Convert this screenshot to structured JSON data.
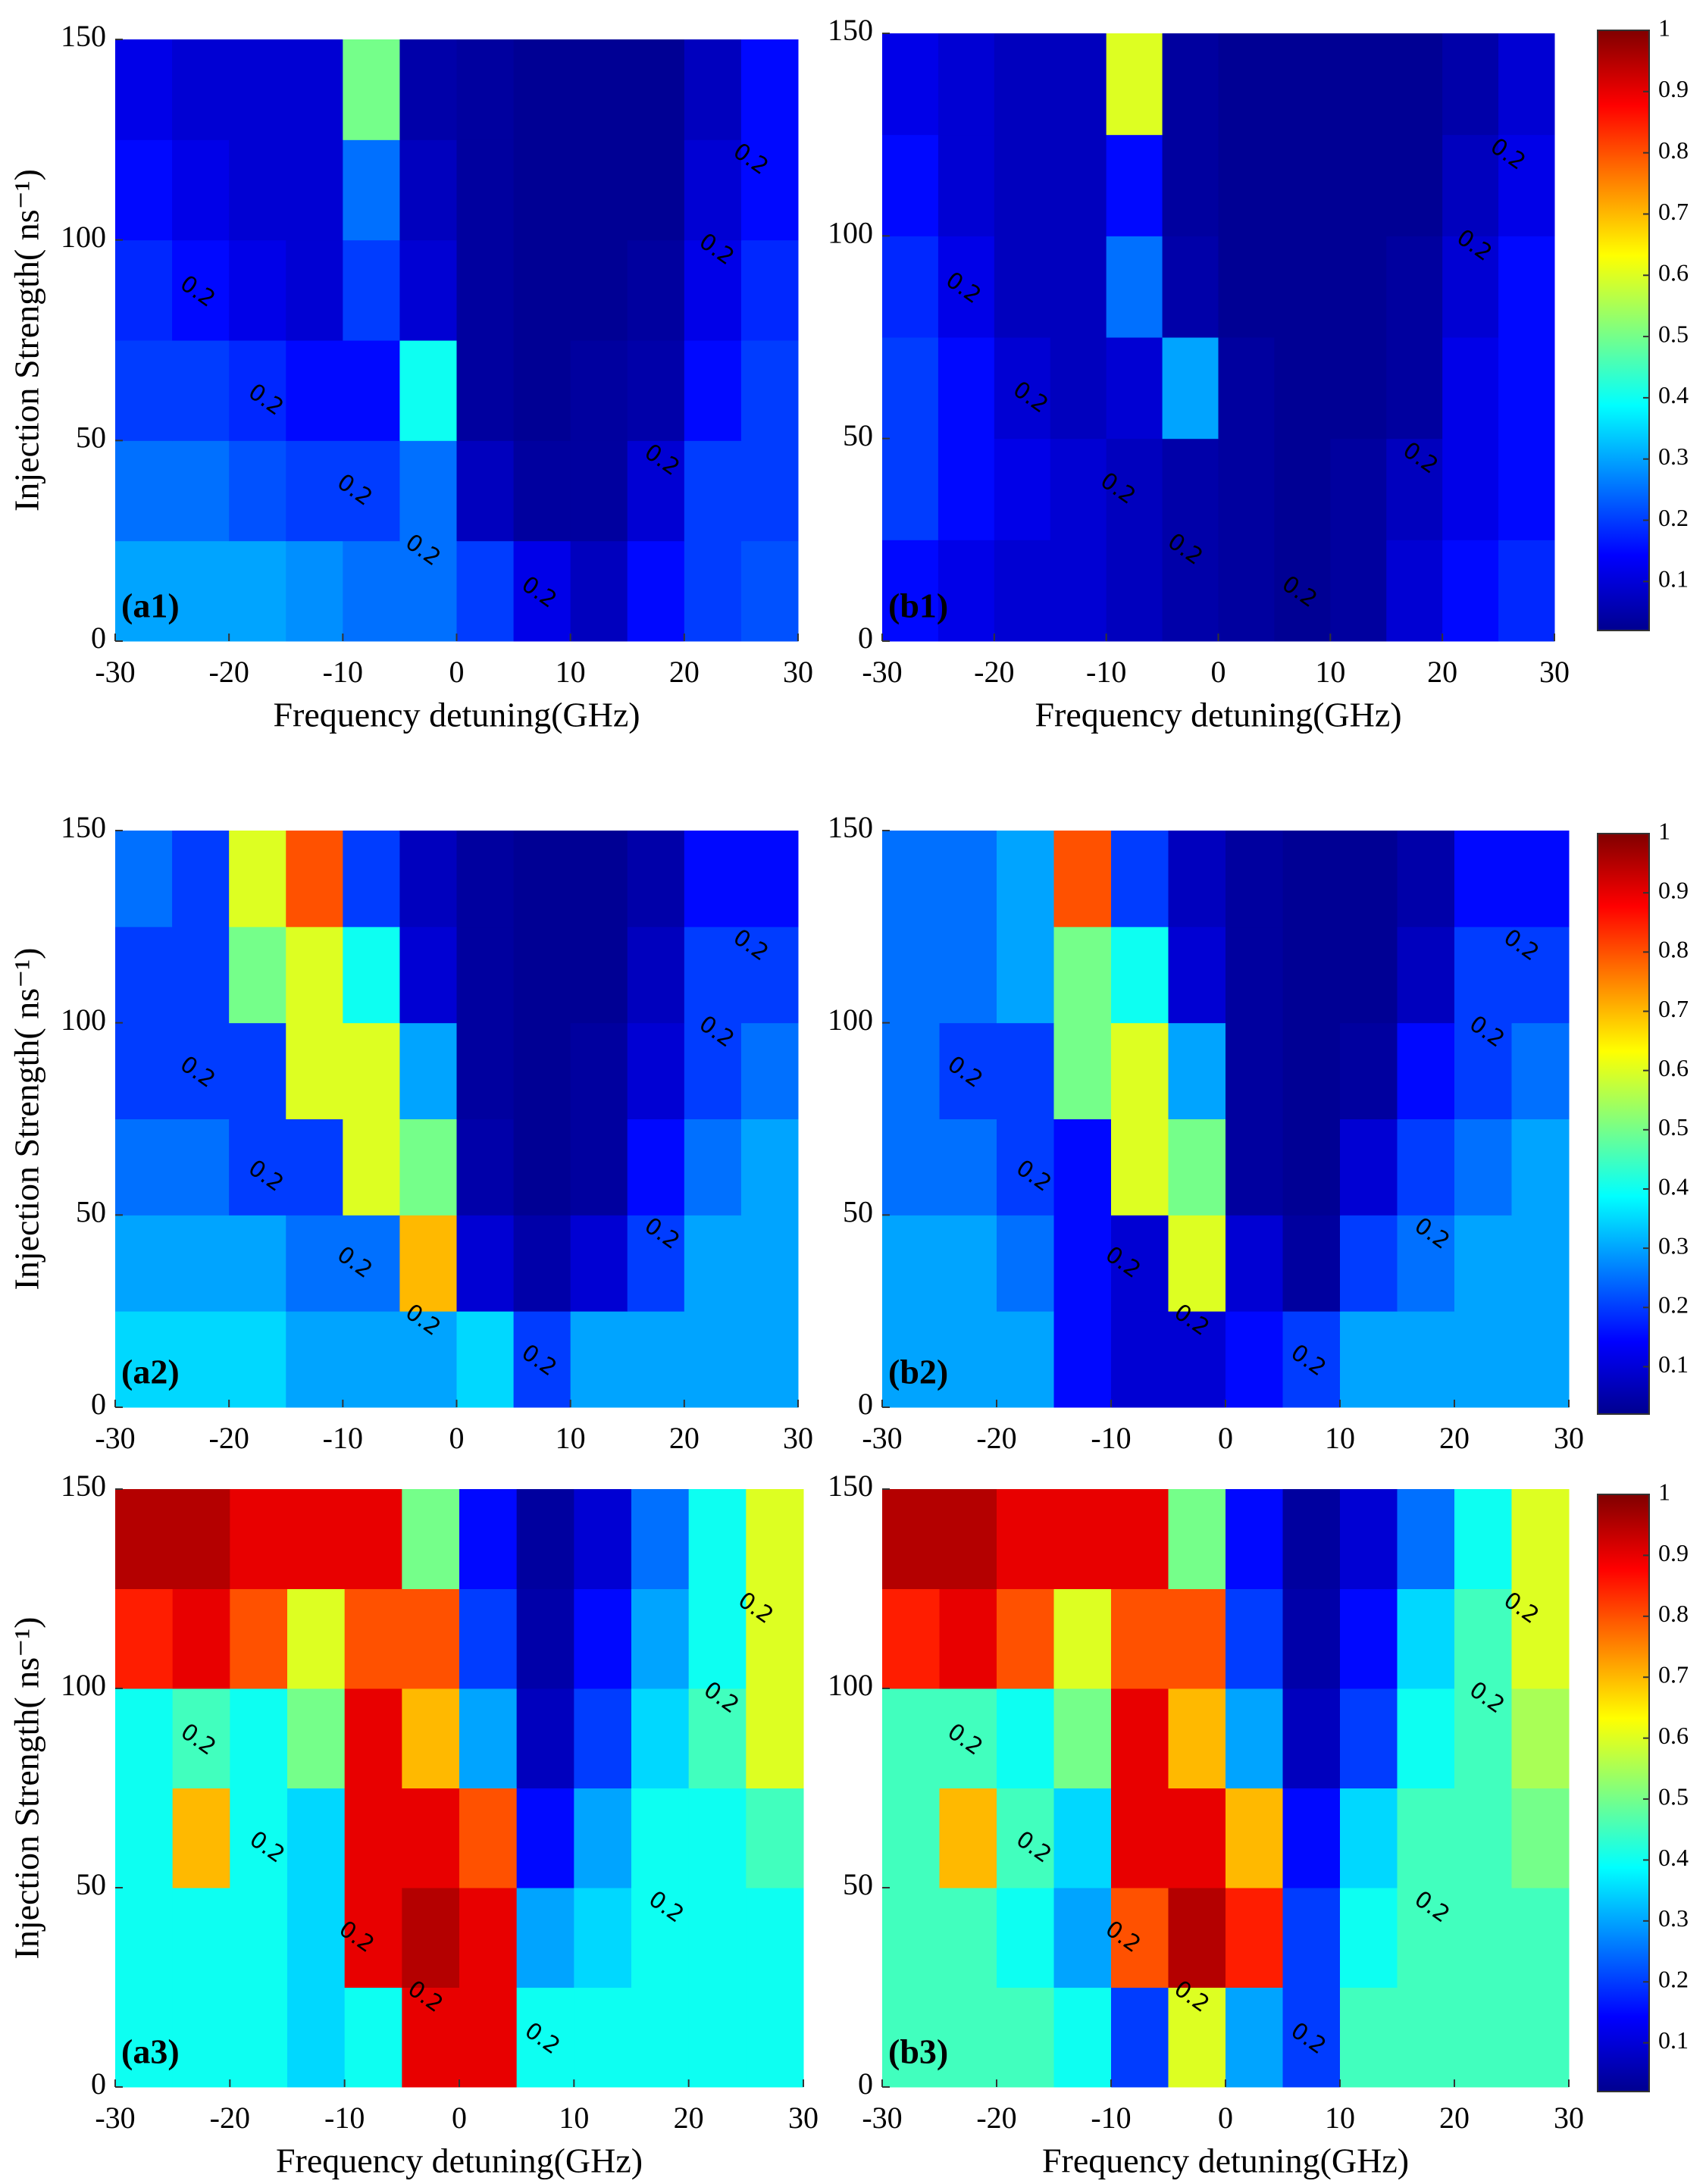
{
  "chart_data": [
    {
      "type": "heatmap",
      "panel_label": "(a1)",
      "xlabel": "Frequency detuning(GHz)",
      "ylabel": "Injection Strength( ns⁻¹)",
      "x": [
        -27.5,
        -22.5,
        -17.5,
        -12.5,
        -7.5,
        -2.5,
        2.5,
        7.5,
        12.5,
        17.5,
        22.5,
        27.5
      ],
      "y": [
        12.5,
        37.5,
        62.5,
        87.5,
        112.5,
        137.5
      ],
      "z": [
        [
          0.3,
          0.3,
          0.3,
          0.28,
          0.25,
          0.25,
          0.2,
          0.12,
          0.08,
          0.15,
          0.2,
          0.22
        ],
        [
          0.25,
          0.25,
          0.22,
          0.2,
          0.2,
          0.25,
          0.08,
          0.05,
          0.05,
          0.1,
          0.2,
          0.2
        ],
        [
          0.2,
          0.2,
          0.18,
          0.15,
          0.15,
          0.4,
          0.05,
          0.04,
          0.05,
          0.06,
          0.15,
          0.2
        ],
        [
          0.18,
          0.15,
          0.12,
          0.1,
          0.2,
          0.1,
          0.05,
          0.04,
          0.04,
          0.05,
          0.12,
          0.18
        ],
        [
          0.15,
          0.12,
          0.1,
          0.1,
          0.25,
          0.08,
          0.05,
          0.04,
          0.04,
          0.04,
          0.1,
          0.15
        ],
        [
          0.12,
          0.1,
          0.1,
          0.1,
          0.5,
          0.06,
          0.05,
          0.04,
          0.04,
          0.04,
          0.08,
          0.15
        ]
      ],
      "xlim": [
        -30,
        30
      ],
      "xticks": [
        -30,
        -20,
        -10,
        0,
        10,
        20,
        30
      ],
      "ylim": [
        0,
        150
      ],
      "yticks": [
        0,
        50,
        100,
        150
      ],
      "clim": [
        0.02,
        1
      ],
      "colormap": "jet",
      "contour_levels": [
        0.2
      ]
    },
    {
      "type": "heatmap",
      "panel_label": "(b1)",
      "xlabel": "Frequency detuning(GHz)",
      "x": [
        -27.5,
        -22.5,
        -17.5,
        -12.5,
        -7.5,
        -2.5,
        2.5,
        7.5,
        12.5,
        17.5,
        22.5,
        27.5
      ],
      "y": [
        12.5,
        37.5,
        62.5,
        87.5,
        112.5,
        137.5
      ],
      "z": [
        [
          0.15,
          0.12,
          0.1,
          0.1,
          0.08,
          0.06,
          0.05,
          0.04,
          0.05,
          0.1,
          0.15,
          0.18
        ],
        [
          0.2,
          0.15,
          0.12,
          0.1,
          0.08,
          0.06,
          0.05,
          0.04,
          0.05,
          0.08,
          0.12,
          0.15
        ],
        [
          0.2,
          0.15,
          0.1,
          0.08,
          0.1,
          0.3,
          0.05,
          0.04,
          0.04,
          0.05,
          0.12,
          0.15
        ],
        [
          0.18,
          0.12,
          0.08,
          0.08,
          0.25,
          0.06,
          0.04,
          0.04,
          0.04,
          0.05,
          0.1,
          0.15
        ],
        [
          0.15,
          0.1,
          0.08,
          0.08,
          0.15,
          0.05,
          0.04,
          0.04,
          0.04,
          0.04,
          0.08,
          0.12
        ],
        [
          0.12,
          0.1,
          0.08,
          0.08,
          0.6,
          0.05,
          0.04,
          0.04,
          0.04,
          0.04,
          0.06,
          0.1
        ]
      ],
      "xlim": [
        -30,
        30
      ],
      "xticks": [
        -30,
        -20,
        -10,
        0,
        10,
        20,
        30
      ],
      "ylim": [
        0,
        150
      ],
      "yticks": [
        0,
        50,
        100,
        150
      ],
      "clim": [
        0.02,
        1
      ],
      "colormap": "jet",
      "contour_levels": [
        0.2
      ],
      "cticks": [
        0.1,
        0.2,
        0.3,
        0.4,
        0.5,
        0.6,
        0.7,
        0.8,
        0.9,
        1
      ]
    },
    {
      "type": "heatmap",
      "panel_label": "(a2)",
      "ylabel": "Injection Strength( ns⁻¹)",
      "x": [
        -27.5,
        -22.5,
        -17.5,
        -12.5,
        -7.5,
        -2.5,
        2.5,
        7.5,
        12.5,
        17.5,
        22.5,
        27.5
      ],
      "y": [
        12.5,
        37.5,
        62.5,
        87.5,
        112.5,
        137.5
      ],
      "z": [
        [
          0.35,
          0.35,
          0.35,
          0.3,
          0.3,
          0.3,
          0.35,
          0.2,
          0.3,
          0.3,
          0.3,
          0.3
        ],
        [
          0.3,
          0.3,
          0.3,
          0.25,
          0.25,
          0.7,
          0.1,
          0.06,
          0.1,
          0.2,
          0.3,
          0.3
        ],
        [
          0.25,
          0.25,
          0.2,
          0.2,
          0.6,
          0.5,
          0.06,
          0.04,
          0.05,
          0.15,
          0.25,
          0.3
        ],
        [
          0.2,
          0.2,
          0.2,
          0.6,
          0.6,
          0.3,
          0.05,
          0.04,
          0.05,
          0.1,
          0.2,
          0.25
        ],
        [
          0.2,
          0.2,
          0.5,
          0.6,
          0.4,
          0.1,
          0.05,
          0.04,
          0.04,
          0.08,
          0.2,
          0.2
        ],
        [
          0.25,
          0.2,
          0.6,
          0.8,
          0.2,
          0.08,
          0.05,
          0.04,
          0.04,
          0.06,
          0.15,
          0.15
        ]
      ],
      "xlim": [
        -30,
        30
      ],
      "xticks": [
        -30,
        -20,
        -10,
        0,
        10,
        20,
        30
      ],
      "ylim": [
        0,
        150
      ],
      "yticks": [
        0,
        50,
        100,
        150
      ],
      "clim": [
        0.02,
        1
      ],
      "colormap": "jet",
      "contour_levels": [
        0.2
      ]
    },
    {
      "type": "heatmap",
      "panel_label": "(b2)",
      "x": [
        -27.5,
        -22.5,
        -17.5,
        -12.5,
        -7.5,
        -2.5,
        2.5,
        7.5,
        12.5,
        17.5,
        22.5,
        27.5
      ],
      "y": [
        12.5,
        37.5,
        62.5,
        87.5,
        112.5,
        137.5
      ],
      "z": [
        [
          0.3,
          0.3,
          0.3,
          0.15,
          0.1,
          0.1,
          0.15,
          0.2,
          0.3,
          0.3,
          0.3,
          0.3
        ],
        [
          0.3,
          0.3,
          0.25,
          0.15,
          0.1,
          0.6,
          0.1,
          0.05,
          0.2,
          0.25,
          0.3,
          0.3
        ],
        [
          0.25,
          0.25,
          0.2,
          0.15,
          0.6,
          0.5,
          0.05,
          0.04,
          0.1,
          0.2,
          0.25,
          0.3
        ],
        [
          0.25,
          0.2,
          0.2,
          0.5,
          0.6,
          0.3,
          0.05,
          0.04,
          0.05,
          0.15,
          0.2,
          0.25
        ],
        [
          0.25,
          0.25,
          0.3,
          0.5,
          0.4,
          0.1,
          0.05,
          0.04,
          0.04,
          0.08,
          0.2,
          0.2
        ],
        [
          0.25,
          0.25,
          0.3,
          0.8,
          0.2,
          0.08,
          0.05,
          0.04,
          0.04,
          0.06,
          0.15,
          0.15
        ]
      ],
      "xlim": [
        -30,
        30
      ],
      "xticks": [
        -30,
        -20,
        -10,
        0,
        10,
        20,
        30
      ],
      "ylim": [
        0,
        150
      ],
      "yticks": [
        0,
        50,
        100,
        150
      ],
      "clim": [
        0.02,
        1
      ],
      "colormap": "jet",
      "contour_levels": [
        0.2
      ],
      "cticks": [
        0.1,
        0.2,
        0.3,
        0.4,
        0.5,
        0.6,
        0.7,
        0.8,
        0.9,
        1
      ]
    },
    {
      "type": "heatmap",
      "panel_label": "(a3)",
      "xlabel": "Frequency detuning(GHz)",
      "ylabel": "Injection Strength( ns⁻¹)",
      "x": [
        -27.5,
        -22.5,
        -17.5,
        -12.5,
        -7.5,
        -2.5,
        2.5,
        7.5,
        12.5,
        17.5,
        22.5,
        27.5
      ],
      "y": [
        12.5,
        37.5,
        62.5,
        87.5,
        112.5,
        137.5
      ],
      "z": [
        [
          0.4,
          0.4,
          0.4,
          0.35,
          0.4,
          0.9,
          0.9,
          0.4,
          0.4,
          0.4,
          0.4,
          0.4
        ],
        [
          0.4,
          0.4,
          0.4,
          0.35,
          0.9,
          0.95,
          0.9,
          0.3,
          0.35,
          0.4,
          0.4,
          0.4
        ],
        [
          0.4,
          0.7,
          0.4,
          0.35,
          0.9,
          0.9,
          0.8,
          0.15,
          0.3,
          0.4,
          0.4,
          0.45
        ],
        [
          0.4,
          0.45,
          0.4,
          0.5,
          0.9,
          0.7,
          0.3,
          0.08,
          0.2,
          0.35,
          0.45,
          0.6
        ],
        [
          0.85,
          0.9,
          0.8,
          0.6,
          0.8,
          0.8,
          0.2,
          0.06,
          0.15,
          0.3,
          0.4,
          0.6
        ],
        [
          0.95,
          0.95,
          0.9,
          0.9,
          0.9,
          0.5,
          0.15,
          0.05,
          0.1,
          0.25,
          0.4,
          0.6
        ]
      ],
      "xlim": [
        -30,
        30
      ],
      "xticks": [
        -30,
        -20,
        -10,
        0,
        10,
        20,
        30
      ],
      "ylim": [
        0,
        150
      ],
      "yticks": [
        0,
        50,
        100,
        150
      ],
      "clim": [
        0.02,
        1
      ],
      "colormap": "jet",
      "contour_levels": [
        0.2
      ]
    },
    {
      "type": "heatmap",
      "panel_label": "(b3)",
      "xlabel": "Frequency detuning(GHz)",
      "x": [
        -27.5,
        -22.5,
        -17.5,
        -12.5,
        -7.5,
        -2.5,
        2.5,
        7.5,
        12.5,
        17.5,
        22.5,
        27.5
      ],
      "y": [
        12.5,
        37.5,
        62.5,
        87.5,
        112.5,
        137.5
      ],
      "z": [
        [
          0.45,
          0.45,
          0.45,
          0.4,
          0.2,
          0.6,
          0.3,
          0.2,
          0.45,
          0.45,
          0.45,
          0.45
        ],
        [
          0.45,
          0.45,
          0.4,
          0.3,
          0.8,
          0.95,
          0.85,
          0.2,
          0.4,
          0.45,
          0.45,
          0.45
        ],
        [
          0.45,
          0.7,
          0.45,
          0.35,
          0.9,
          0.9,
          0.7,
          0.15,
          0.35,
          0.45,
          0.45,
          0.5
        ],
        [
          0.45,
          0.45,
          0.4,
          0.5,
          0.9,
          0.7,
          0.3,
          0.08,
          0.2,
          0.4,
          0.45,
          0.55
        ],
        [
          0.85,
          0.9,
          0.8,
          0.6,
          0.8,
          0.8,
          0.2,
          0.06,
          0.15,
          0.35,
          0.45,
          0.6
        ],
        [
          0.95,
          0.95,
          0.9,
          0.9,
          0.9,
          0.5,
          0.15,
          0.05,
          0.1,
          0.25,
          0.4,
          0.6
        ]
      ],
      "xlim": [
        -30,
        30
      ],
      "xticks": [
        -30,
        -20,
        -10,
        0,
        10,
        20,
        30
      ],
      "ylim": [
        0,
        150
      ],
      "yticks": [
        0,
        50,
        100,
        150
      ],
      "clim": [
        0.02,
        1
      ],
      "colormap": "jet",
      "contour_levels": [
        0.2
      ],
      "cticks": [
        0.1,
        0.2,
        0.3,
        0.4,
        0.5,
        0.6,
        0.7,
        0.8,
        0.9,
        1
      ]
    }
  ]
}
